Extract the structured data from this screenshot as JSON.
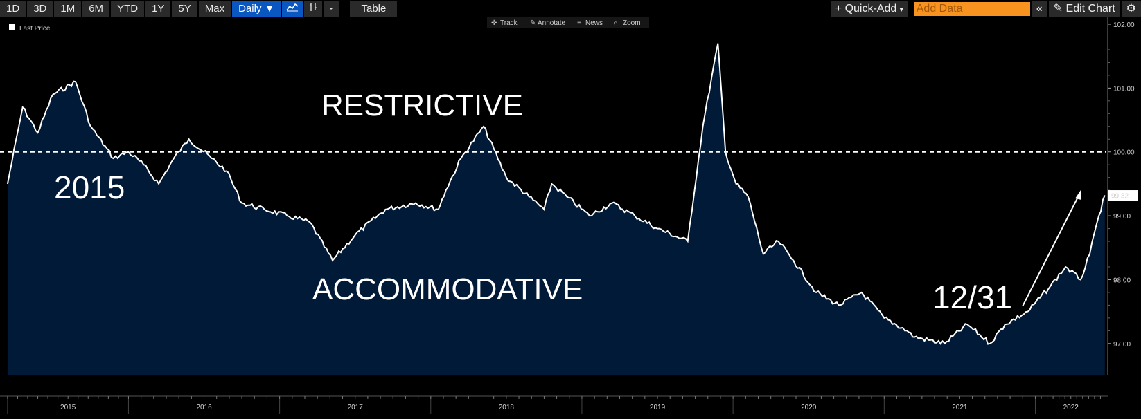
{
  "toolbar": {
    "ranges": [
      "1D",
      "3D",
      "1M",
      "6M",
      "YTD",
      "1Y",
      "5Y",
      "Max"
    ],
    "frequency": "Daily ▼",
    "table_label": "Table",
    "quick_add": "+ Quick-Add",
    "add_data_placeholder": "Add Data",
    "edit_chart": "Edit Chart"
  },
  "chart_tools": [
    "Track",
    "Annotate",
    "News",
    "Zoom"
  ],
  "legend": {
    "label": "Last Price"
  },
  "last_price": "99.32",
  "annotations": {
    "restrictive": "RESTRICTIVE",
    "accommodative": "ACCOMMODATIVE",
    "year_2015": "2015",
    "date_1231": "12/31"
  },
  "colors": {
    "area_fill": "#011a38",
    "line": "#ffffff",
    "toolbar_active": "#0a57c2",
    "add_data": "#f7931e"
  },
  "chart_data": {
    "type": "area",
    "series": [
      {
        "name": "Last Price",
        "x": [
          2015.0,
          2015.1,
          2015.2,
          2015.3,
          2015.45,
          2015.55,
          2015.7,
          2015.8,
          2015.9,
          2016.0,
          2016.1,
          2016.2,
          2016.35,
          2016.45,
          2016.55,
          2016.7,
          2016.85,
          2017.0,
          2017.15,
          2017.3,
          2017.5,
          2017.7,
          2017.85,
          2017.9,
          2018.0,
          2018.15,
          2018.3,
          2018.45,
          2018.55,
          2018.6,
          2018.7,
          2018.85,
          2019.0,
          2019.15,
          2019.3,
          2019.5,
          2019.6,
          2019.7,
          2019.75,
          2019.82,
          2019.9,
          2020.0,
          2020.1,
          2020.2,
          2020.35,
          2020.5,
          2020.65,
          2020.8,
          2020.95,
          2021.0,
          2021.2,
          2021.35,
          2021.5,
          2021.6,
          2021.75,
          2021.9,
          2022.0,
          2022.1,
          2022.16,
          2022.22,
          2022.26
        ],
        "values": [
          99.5,
          100.7,
          100.3,
          100.9,
          101.1,
          100.4,
          99.9,
          100.0,
          99.8,
          99.5,
          99.9,
          100.2,
          99.9,
          99.7,
          99.2,
          99.1,
          99.0,
          98.9,
          98.3,
          98.7,
          99.1,
          99.2,
          99.1,
          99.4,
          99.9,
          100.4,
          99.6,
          99.3,
          99.1,
          99.5,
          99.3,
          99.0,
          99.2,
          99.0,
          98.8,
          98.6,
          100.4,
          101.7,
          100.0,
          99.5,
          99.3,
          98.4,
          98.6,
          98.3,
          97.8,
          97.6,
          97.8,
          97.4,
          97.2,
          97.1,
          97.0,
          97.3,
          97.0,
          97.3,
          97.5,
          97.9,
          98.2,
          98.0,
          98.4,
          99.0,
          99.32
        ]
      }
    ],
    "reference_line": 100.0,
    "ylim": [
      96.5,
      102.0
    ],
    "y_ticks": [
      "97.00",
      "98.00",
      "99.00",
      "100.00",
      "101.00",
      "102.00"
    ],
    "xlim": [
      2014.95,
      2022.27
    ],
    "x_ticks": [
      "2015",
      "2016",
      "2017",
      "2018",
      "2019",
      "2020",
      "2021",
      "2022"
    ],
    "x_tick_values": [
      2015.0,
      2015.8,
      2016.8,
      2017.8,
      2018.8,
      2019.8,
      2020.8,
      2021.8
    ]
  }
}
